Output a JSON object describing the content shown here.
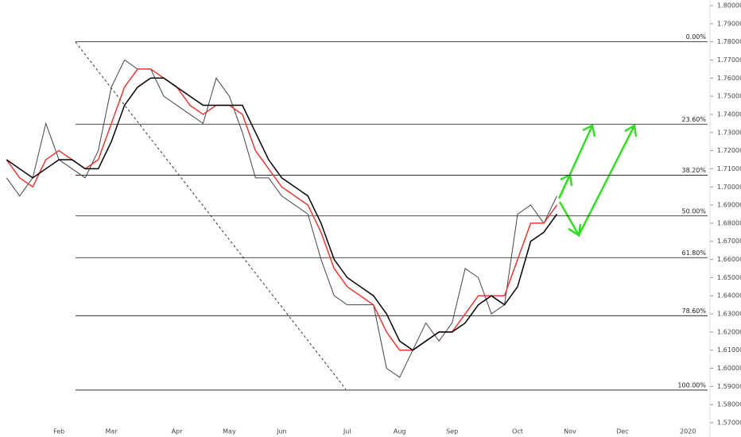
{
  "chart_data": {
    "type": "line",
    "categories": [
      null,
      null,
      null,
      null,
      "Feb",
      null,
      null,
      null,
      "Mar",
      null,
      null,
      null,
      null,
      "Apr",
      null,
      null,
      null,
      "May",
      null,
      null,
      null,
      "Jun",
      null,
      null,
      null,
      null,
      "Jul",
      null,
      null,
      null,
      "Aug",
      null,
      null,
      null,
      "Sep",
      null,
      null,
      null,
      null,
      "Oct",
      null,
      null,
      null,
      "Nov",
      null,
      null,
      null,
      "Dec",
      null,
      null,
      null,
      null,
      "2020",
      null
    ],
    "series": [
      {
        "color": "#444444",
        "values": [
          1.705,
          1.695,
          1.705,
          1.735,
          1.715,
          1.71,
          1.705,
          1.72,
          1.755,
          1.77,
          1.765,
          1.765,
          1.75,
          1.745,
          1.74,
          1.735,
          1.76,
          1.75,
          1.73,
          1.705,
          1.705,
          1.695,
          1.69,
          1.685,
          1.66,
          1.64,
          1.635,
          1.635,
          1.635,
          1.6,
          1.595,
          1.61,
          1.625,
          1.615,
          1.625,
          1.655,
          1.65,
          1.63,
          1.635,
          1.685,
          1.69,
          1.68,
          1.695,
          null,
          null,
          null,
          null,
          null,
          null,
          null,
          null,
          null,
          null,
          null
        ]
      },
      {
        "color": "#e53935",
        "values": [
          1.715,
          1.705,
          1.7,
          1.715,
          1.72,
          1.715,
          1.71,
          1.715,
          1.735,
          1.755,
          1.765,
          1.765,
          1.76,
          1.755,
          1.745,
          1.74,
          1.745,
          1.745,
          1.74,
          1.72,
          1.71,
          1.7,
          1.695,
          1.69,
          1.675,
          1.655,
          1.645,
          1.64,
          1.635,
          1.62,
          1.61,
          1.61,
          1.615,
          1.62,
          1.62,
          1.63,
          1.64,
          1.64,
          1.64,
          1.66,
          1.68,
          1.68,
          1.69,
          null,
          null,
          null,
          null,
          null,
          null,
          null,
          null,
          null,
          null,
          null
        ]
      },
      {
        "color": "#000000",
        "values": [
          1.715,
          1.71,
          1.705,
          1.71,
          1.715,
          1.715,
          1.71,
          1.71,
          1.725,
          1.745,
          1.755,
          1.76,
          1.76,
          1.755,
          1.75,
          1.745,
          1.745,
          1.745,
          1.745,
          1.73,
          1.715,
          1.705,
          1.7,
          1.695,
          1.68,
          1.66,
          1.65,
          1.645,
          1.64,
          1.63,
          1.615,
          1.61,
          1.615,
          1.62,
          1.62,
          1.625,
          1.635,
          1.64,
          1.635,
          1.645,
          1.67,
          1.675,
          1.685,
          null,
          null,
          null,
          null,
          null,
          null,
          null,
          null,
          null,
          null,
          null
        ]
      }
    ],
    "fib_levels": [
      {
        "label": "0.00%",
        "value": 1.78
      },
      {
        "label": "23.60%",
        "value": 1.7346
      },
      {
        "label": "38.20%",
        "value": 1.7065
      },
      {
        "label": "50.00%",
        "value": 1.684
      },
      {
        "label": "61.80%",
        "value": 1.661
      },
      {
        "label": "78.60%",
        "value": 1.629
      },
      {
        "label": "100.00%",
        "value": 1.588
      }
    ],
    "ylim": [
      1.57,
      1.8
    ],
    "yticks": [
      {
        "value": 1.57,
        "label": "1.57000"
      },
      {
        "value": 1.58,
        "label": "1.58000"
      },
      {
        "value": 1.59,
        "label": "1.59000"
      },
      {
        "value": 1.6,
        "label": "1.60000"
      },
      {
        "value": 1.61,
        "label": "1.61000"
      },
      {
        "value": 1.62,
        "label": "1.62000"
      },
      {
        "value": 1.63,
        "label": "1.63000"
      },
      {
        "value": 1.64,
        "label": "1.64000"
      },
      {
        "value": 1.65,
        "label": "1.65000"
      },
      {
        "value": 1.66,
        "label": "1.66000"
      },
      {
        "value": 1.67,
        "label": "1.67000"
      },
      {
        "value": 1.68,
        "label": "1.68000"
      },
      {
        "value": 1.69,
        "label": "1.69000"
      },
      {
        "value": 1.7,
        "label": "1.70000"
      },
      {
        "value": 1.71,
        "label": "1.71000"
      },
      {
        "value": 1.72,
        "label": "1.72000"
      },
      {
        "value": 1.73,
        "label": "1.73000"
      },
      {
        "value": 1.74,
        "label": "1.74000"
      },
      {
        "value": 1.75,
        "label": "1.75000"
      },
      {
        "value": 1.76,
        "label": "1.76000"
      },
      {
        "value": 1.77,
        "label": "1.77000"
      },
      {
        "value": 1.78,
        "label": "1.78000"
      },
      {
        "value": 1.79,
        "label": "1.79000"
      },
      {
        "value": 1.8,
        "label": "1.80000"
      }
    ],
    "grid": false
  }
}
